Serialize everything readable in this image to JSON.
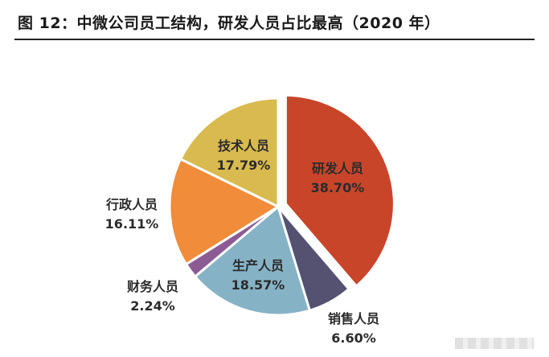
{
  "title": "图 12：中微公司员工结构，研发人员占比最高（2020 年）",
  "chart_data": {
    "type": "pie",
    "title": "图 12：中微公司员工结构，研发人员占比最高（2020 年）",
    "slices": [
      {
        "label": "研发人员",
        "value": 38.7,
        "value_label": "38.70%",
        "color": "#C8452A",
        "exploded": true
      },
      {
        "label": "销售人员",
        "value": 6.6,
        "value_label": "6.60%",
        "color": "#545270"
      },
      {
        "label": "生产人员",
        "value": 18.57,
        "value_label": "18.57%",
        "color": "#86B2C6"
      },
      {
        "label": "财务人员",
        "value": 2.24,
        "value_label": "2.24%",
        "color": "#8C5B94"
      },
      {
        "label": "行政人员",
        "value": 16.11,
        "value_label": "16.11%",
        "color": "#F08C3A"
      },
      {
        "label": "技术人员",
        "value": 17.79,
        "value_label": "17.79%",
        "color": "#D9BA4E"
      }
    ]
  }
}
